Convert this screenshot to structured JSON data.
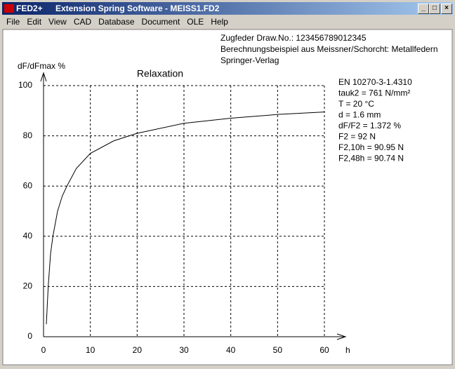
{
  "window": {
    "app": "FED2+",
    "title": "Extension Spring Software  -  MEISS1.FD2"
  },
  "menu": [
    "File",
    "Edit",
    "View",
    "CAD",
    "Database",
    "Document",
    "OLE",
    "Help"
  ],
  "header": [
    "Zugfeder  Draw.No.: 123456789012345",
    "Berechnungsbeispiel aus Meissner/Schorcht: Metallfedern",
    "Springer-Verlag"
  ],
  "info": [
    "EN 10270-3-1.4310",
    "tauk2 = 761 N/mm²",
    "T = 20 °C",
    "d = 1.6 mm",
    "dF/F2 = 1.372 %",
    "F2 = 92 N",
    "F2,10h = 90.95 N",
    "F2,48h = 90.74 N"
  ],
  "chart_data": {
    "type": "line",
    "title": "Relaxation",
    "x_label": "h",
    "y_label": "dF/dFmax %",
    "x": [
      0.6,
      1,
      1.5,
      2,
      3,
      4,
      5,
      7,
      10,
      15,
      20,
      30,
      40,
      50,
      60
    ],
    "series": [
      {
        "color": "#000000",
        "values": [
          5,
          20,
          33,
          40,
          50,
          56,
          60,
          67,
          73,
          78,
          81,
          85,
          87,
          88.5,
          89.5
        ]
      }
    ],
    "xlim": [
      0,
      60
    ],
    "ylim": [
      0,
      100
    ],
    "xticks": [
      0,
      10,
      20,
      30,
      40,
      50,
      60
    ],
    "yticks": [
      0,
      20,
      40,
      60,
      80,
      100
    ],
    "grid": true
  }
}
